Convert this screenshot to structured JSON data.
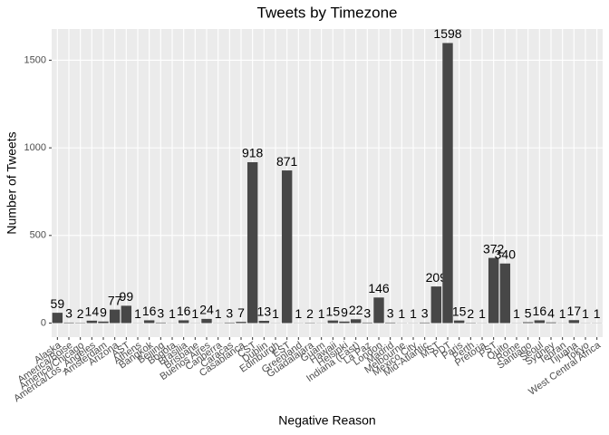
{
  "chart_data": {
    "type": "bar",
    "title": "Tweets by Timezone",
    "x_label": "Negative Reason",
    "y_label": "Number of Tweets",
    "categories": [
      "Alaska",
      "America/Boise",
      "America/Chicago",
      "America/Los_Angeles",
      "Amsterdam",
      "Arizona",
      "AST",
      "Athens",
      "Bangkok",
      "Beijing",
      "Bogota",
      "Brasilia",
      "Brisbane",
      "Buenos Aires",
      "Canberra",
      "Caracas",
      "Casablanca",
      "CST",
      "Dublin",
      "Edinburgh",
      "EST",
      "Greenland",
      "Guadalajara",
      "Guam",
      "Hawaii",
      "Helsinki",
      "Indiana (East)",
      "La Paz",
      "London",
      "Madrid",
      "Melbourne",
      "Mexico City",
      "Mid-Atlantic",
      "MST",
      "PDT",
      "Paris",
      "Perth",
      "Pretoria",
      "PST",
      "Quito",
      "Rome",
      "Santiago",
      "Seoul",
      "Sydney",
      "Tehran",
      "Tijuana",
      "Tokyo",
      "West Central Africa"
    ],
    "values": [
      59,
      3,
      2,
      14,
      9,
      77,
      99,
      1,
      16,
      3,
      1,
      16,
      1,
      24,
      1,
      3,
      7,
      918,
      13,
      1,
      871,
      1,
      2,
      1,
      15,
      9,
      22,
      3,
      146,
      3,
      1,
      1,
      3,
      209,
      1598,
      15,
      2,
      1,
      372,
      340,
      1,
      5,
      16,
      4,
      1,
      17,
      1,
      1
    ],
    "color": "#474747",
    "ylim": [
      -80,
      1678
    ],
    "yticks": [
      0,
      500,
      1000,
      1500
    ],
    "grid": true
  }
}
